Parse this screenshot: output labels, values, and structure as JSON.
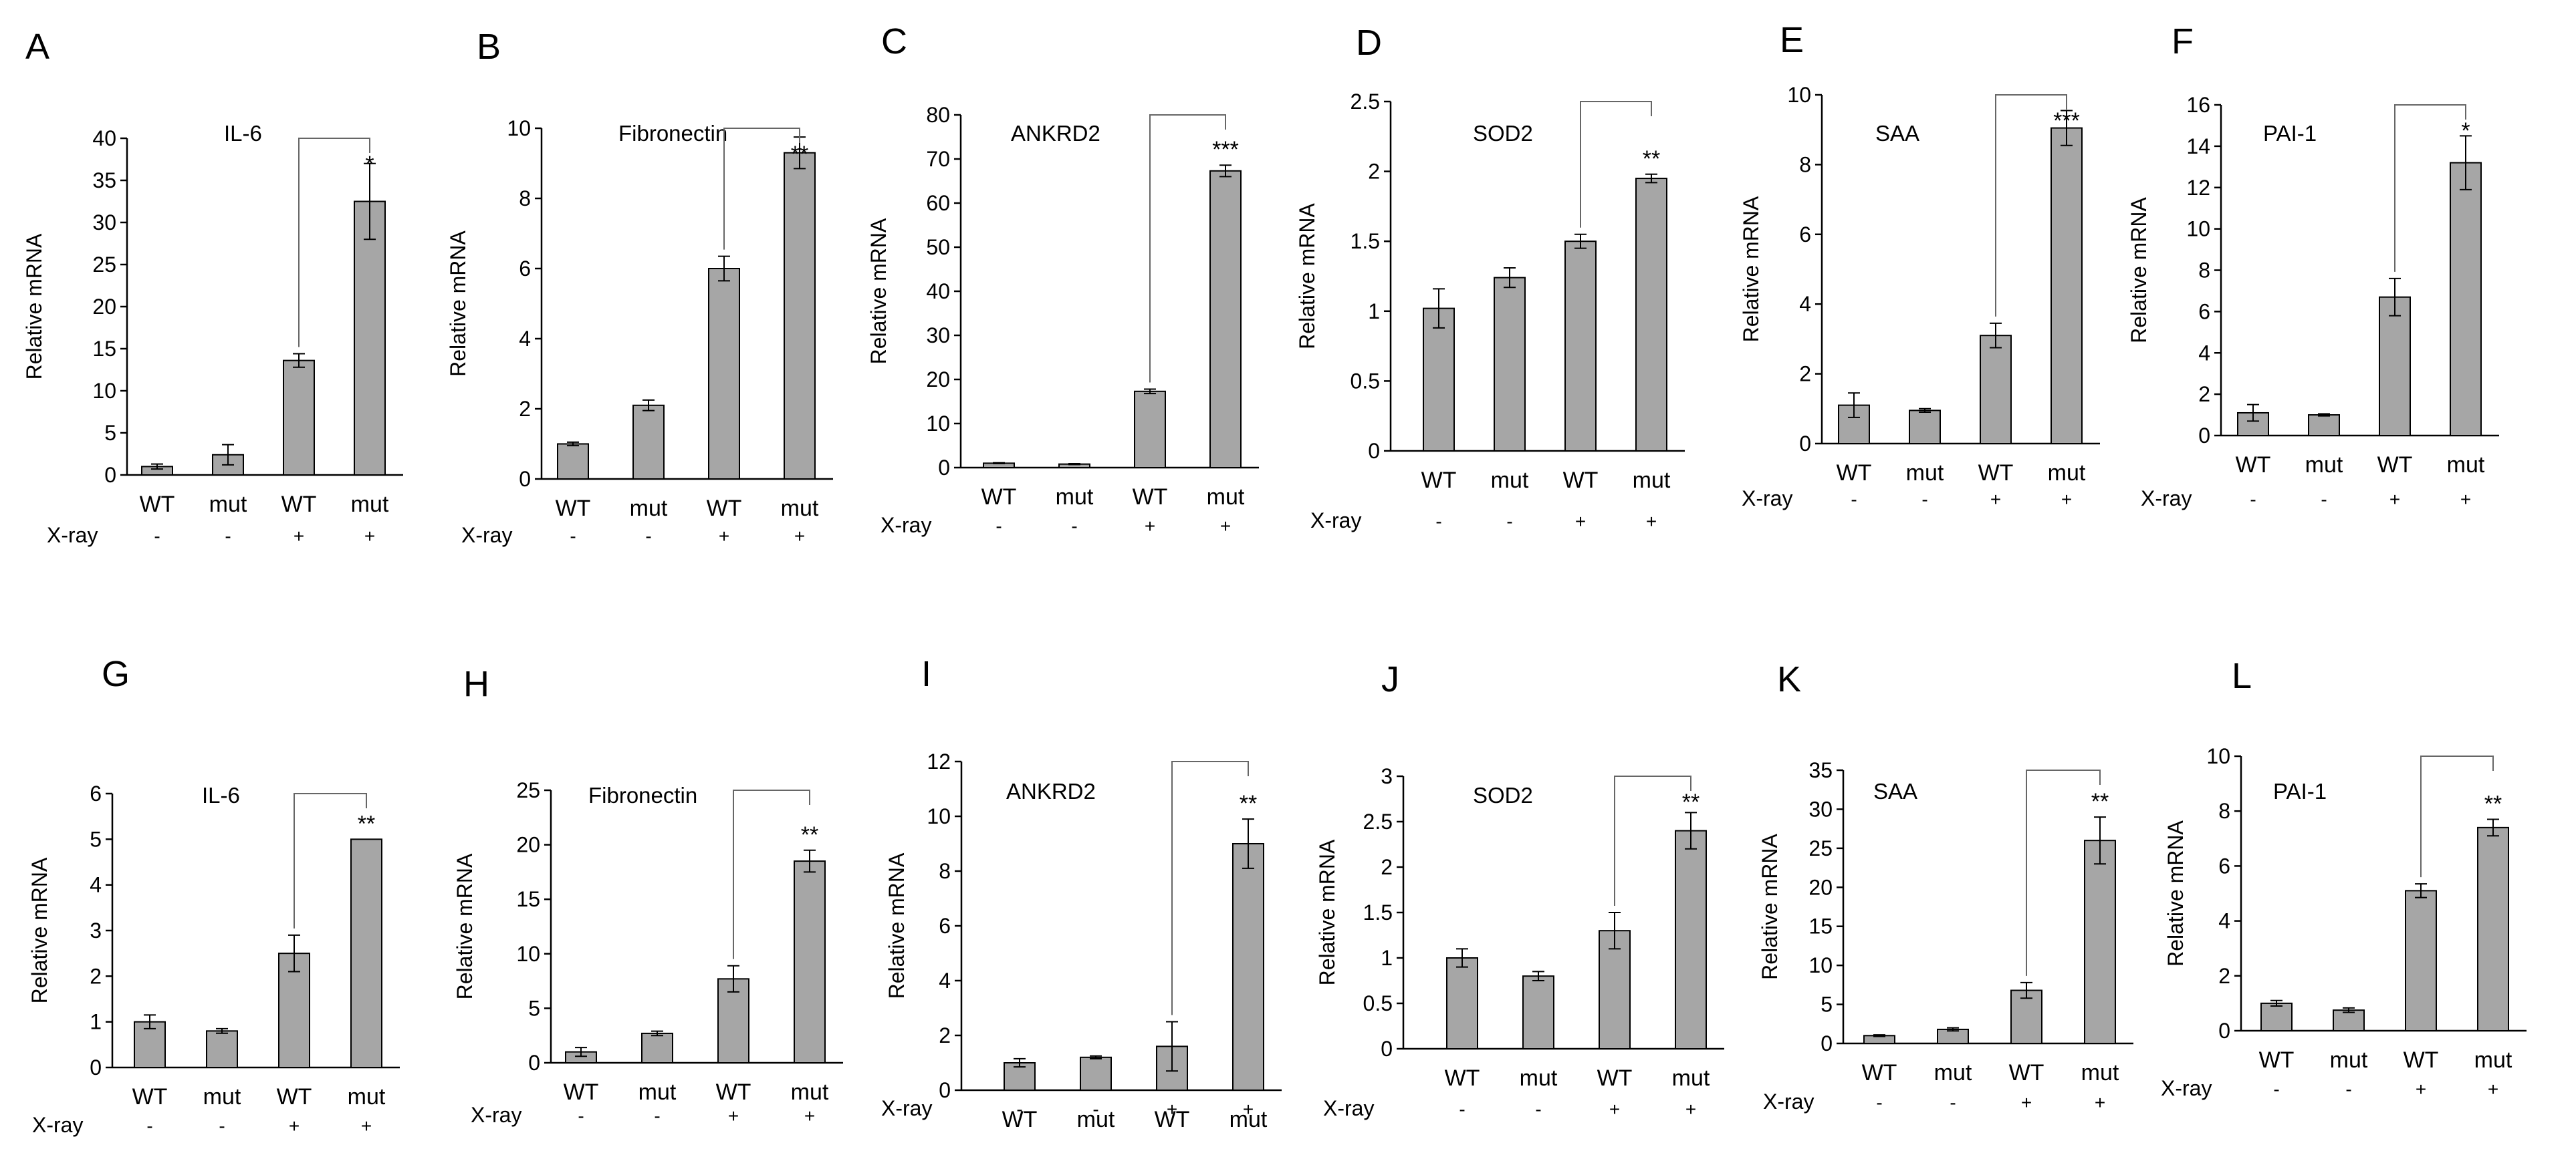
{
  "figure": {
    "ylabel": "Relative mRNA",
    "treatment_label": "X-ray",
    "bar_color": "#a6a6a6"
  },
  "chart_data": [
    {
      "panel": "A",
      "type": "bar",
      "title": "IL-6",
      "ylabel": "Relative mRNA",
      "ylim": [
        0,
        40
      ],
      "ticks": [
        0,
        5,
        10,
        15,
        20,
        25,
        30,
        35,
        40
      ],
      "tick_labels": [
        "0",
        "5",
        "10",
        "15",
        "20",
        "25",
        "30",
        "35",
        "40"
      ],
      "categories": [
        "WT",
        "mut",
        "WT",
        "mut"
      ],
      "xray": [
        "-",
        "-",
        "+",
        "+"
      ],
      "values": [
        1.0,
        2.4,
        13.6,
        32.5
      ],
      "errors": [
        0.3,
        1.2,
        0.8,
        4.5
      ],
      "significance": "*"
    },
    {
      "panel": "B",
      "type": "bar",
      "title": "Fibronectin",
      "ylabel": "Relative mRNA",
      "ylim": [
        0,
        10
      ],
      "ticks": [
        0,
        2,
        4,
        6,
        8,
        10
      ],
      "tick_labels": [
        "0",
        "2",
        "4",
        "6",
        "8",
        "10"
      ],
      "categories": [
        "WT",
        "mut",
        "WT",
        "mut"
      ],
      "xray": [
        "-",
        "-",
        "+",
        "+"
      ],
      "values": [
        1.0,
        2.1,
        6.0,
        9.3
      ],
      "errors": [
        0.05,
        0.15,
        0.35,
        0.45
      ],
      "significance": "**"
    },
    {
      "panel": "C",
      "type": "bar",
      "title": "ANKRD2",
      "ylabel": "Relative mRNA",
      "ylim": [
        0,
        80
      ],
      "ticks": [
        0,
        10,
        20,
        30,
        40,
        50,
        60,
        70,
        80
      ],
      "tick_labels": [
        "0",
        "10",
        "20",
        "30",
        "40",
        "50",
        "60",
        "70",
        "80"
      ],
      "categories": [
        "WT",
        "mut",
        "WT",
        "mut"
      ],
      "xray": [
        "-",
        "-",
        "+",
        "+"
      ],
      "values": [
        1.0,
        0.8,
        17.3,
        67.3
      ],
      "errors": [
        0.1,
        0.1,
        0.5,
        1.3
      ],
      "significance": "***"
    },
    {
      "panel": "D",
      "type": "bar",
      "title": "SOD2",
      "ylabel": "Relative mRNA",
      "ylim": [
        0,
        2.5
      ],
      "ticks": [
        0,
        0.5,
        1,
        1.5,
        2,
        2.5
      ],
      "tick_labels": [
        "0",
        "0.5",
        "1",
        "1.5",
        "2",
        "2.5"
      ],
      "categories": [
        "WT",
        "mut",
        "WT",
        "mut"
      ],
      "xray": [
        "-",
        "-",
        "+",
        "+"
      ],
      "values": [
        1.02,
        1.24,
        1.5,
        1.95
      ],
      "errors": [
        0.14,
        0.07,
        0.05,
        0.03
      ],
      "significance": "**"
    },
    {
      "panel": "E",
      "type": "bar",
      "title": "SAA",
      "ylabel": "Relative mRNA",
      "ylim": [
        0,
        10
      ],
      "ticks": [
        0,
        2,
        4,
        6,
        8,
        10
      ],
      "tick_labels": [
        "0",
        "2",
        "4",
        "6",
        "8",
        "10"
      ],
      "categories": [
        "WT",
        "mut",
        "WT",
        "mut"
      ],
      "xray": [
        "-",
        "-",
        "+",
        "+"
      ],
      "values": [
        1.1,
        0.95,
        3.1,
        9.05
      ],
      "errors": [
        0.35,
        0.05,
        0.35,
        0.5
      ],
      "significance": "***"
    },
    {
      "panel": "F",
      "type": "bar",
      "title": "PAI-1",
      "ylabel": "Relative mRNA",
      "ylim": [
        0,
        16
      ],
      "ticks": [
        0,
        2,
        4,
        6,
        8,
        10,
        12,
        14,
        16
      ],
      "tick_labels": [
        "0",
        "2",
        "4",
        "6",
        "8",
        "10",
        "12",
        "14",
        "16"
      ],
      "categories": [
        "WT",
        "mut",
        "WT",
        "mut"
      ],
      "xray": [
        "-",
        "-",
        "+",
        "+"
      ],
      "values": [
        1.1,
        1.0,
        6.7,
        13.2
      ],
      "errors": [
        0.4,
        0.05,
        0.9,
        1.3
      ],
      "significance": "*"
    },
    {
      "panel": "G",
      "type": "bar",
      "title": "IL-6",
      "ylabel": "Relative mRNA",
      "ylim": [
        0,
        6
      ],
      "ticks": [
        0,
        1,
        2,
        3,
        4,
        5,
        6
      ],
      "tick_labels": [
        "0",
        "1",
        "2",
        "3",
        "4",
        "5",
        "6"
      ],
      "categories": [
        "WT",
        "mut",
        "WT",
        "mut"
      ],
      "xray": [
        "-",
        "-",
        "+",
        "+"
      ],
      "values": [
        1.0,
        0.8,
        2.5,
        5.0
      ],
      "errors": [
        0.15,
        0.05,
        0.4,
        0.0
      ],
      "significance": "**"
    },
    {
      "panel": "H",
      "type": "bar",
      "title": "Fibronectin",
      "ylabel": "Relative mRNA",
      "ylim": [
        0,
        25
      ],
      "ticks": [
        0,
        5,
        10,
        15,
        20,
        25
      ],
      "tick_labels": [
        "0",
        "5",
        "10",
        "15",
        "20",
        "25"
      ],
      "categories": [
        "WT",
        "mut",
        "WT",
        "mut"
      ],
      "xray": [
        "-",
        "-",
        "+",
        "+"
      ],
      "values": [
        1.0,
        2.7,
        7.7,
        18.5
      ],
      "errors": [
        0.4,
        0.2,
        1.2,
        1.0
      ],
      "significance": "**"
    },
    {
      "panel": "I",
      "type": "bar",
      "title": "ANKRD2",
      "ylabel": "Relative mRNA",
      "ylim": [
        0,
        12
      ],
      "ticks": [
        0,
        2,
        4,
        6,
        8,
        10,
        12
      ],
      "tick_labels": [
        "0",
        "2",
        "4",
        "6",
        "8",
        "10",
        "12"
      ],
      "categories": [
        "WT",
        "mut",
        "WT",
        "mut"
      ],
      "xray": [
        "-",
        "-",
        "+",
        "+"
      ],
      "values": [
        1.0,
        1.2,
        1.6,
        9.0
      ],
      "errors": [
        0.15,
        0.05,
        0.9,
        0.9
      ],
      "significance": "**"
    },
    {
      "panel": "J",
      "type": "bar",
      "title": "SOD2",
      "ylabel": "Relative mRNA",
      "ylim": [
        0,
        3
      ],
      "ticks": [
        0,
        0.5,
        1,
        1.5,
        2,
        2.5,
        3
      ],
      "tick_labels": [
        "0",
        "0.5",
        "1",
        "1.5",
        "2",
        "2.5",
        "3"
      ],
      "categories": [
        "WT",
        "mut",
        "WT",
        "mut"
      ],
      "xray": [
        "-",
        "-",
        "+",
        "+"
      ],
      "values": [
        1.0,
        0.8,
        1.3,
        2.4
      ],
      "errors": [
        0.1,
        0.05,
        0.2,
        0.2
      ],
      "significance": "**"
    },
    {
      "panel": "K",
      "type": "bar",
      "title": "SAA",
      "ylabel": "Relative mRNA",
      "ylim": [
        0,
        35
      ],
      "ticks": [
        0,
        5,
        10,
        15,
        20,
        25,
        30,
        35
      ],
      "tick_labels": [
        "0",
        "5",
        "10",
        "15",
        "20",
        "25",
        "30",
        "35"
      ],
      "categories": [
        "WT",
        "mut",
        "WT",
        "mut"
      ],
      "xray": [
        "-",
        "-",
        "+",
        "+"
      ],
      "values": [
        1.0,
        1.8,
        6.8,
        26.0
      ],
      "errors": [
        0.1,
        0.2,
        1.0,
        3.0
      ],
      "significance": "**"
    },
    {
      "panel": "L",
      "type": "bar",
      "title": "PAI-1",
      "ylabel": "Relative mRNA",
      "ylim": [
        0,
        10
      ],
      "ticks": [
        0,
        2,
        4,
        6,
        8,
        10
      ],
      "tick_labels": [
        "0",
        "2",
        "4",
        "6",
        "8",
        "10"
      ],
      "categories": [
        "WT",
        "mut",
        "WT",
        "mut"
      ],
      "xray": [
        "-",
        "-",
        "+",
        "+"
      ],
      "values": [
        1.0,
        0.75,
        5.1,
        7.4
      ],
      "errors": [
        0.1,
        0.08,
        0.25,
        0.3
      ],
      "significance": "**"
    }
  ]
}
